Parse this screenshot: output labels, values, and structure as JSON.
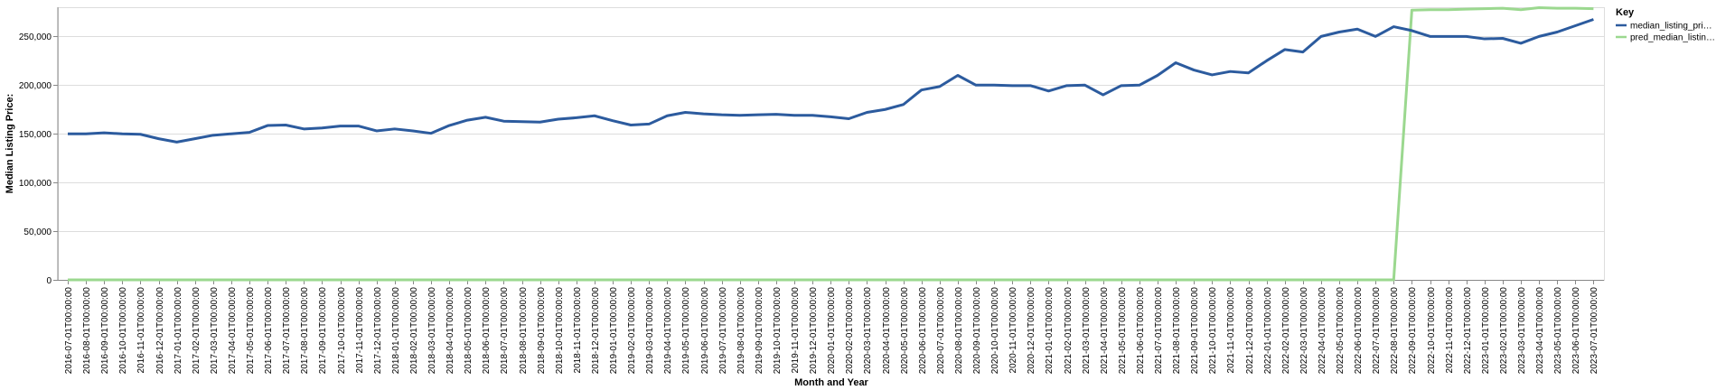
{
  "chart_data": {
    "type": "line",
    "xlabel": "Month and Year",
    "ylabel": "Median Listing Price:",
    "ylim": [
      0,
      280000
    ],
    "y_ticks": [
      0,
      50000,
      100000,
      150000,
      200000,
      250000
    ],
    "grid": true,
    "legend": {
      "title": "Key",
      "placement": "top-right"
    },
    "x": [
      "2016-07-01T00:00:00",
      "2016-08-01T00:00:00",
      "2016-09-01T00:00:00",
      "2016-10-01T00:00:00",
      "2016-11-01T00:00:00",
      "2016-12-01T00:00:00",
      "2017-01-01T00:00:00",
      "2017-02-01T00:00:00",
      "2017-03-01T00:00:00",
      "2017-04-01T00:00:00",
      "2017-05-01T00:00:00",
      "2017-06-01T00:00:00",
      "2017-07-01T00:00:00",
      "2017-08-01T00:00:00",
      "2017-09-01T00:00:00",
      "2017-10-01T00:00:00",
      "2017-11-01T00:00:00",
      "2017-12-01T00:00:00",
      "2018-01-01T00:00:00",
      "2018-02-01T00:00:00",
      "2018-03-01T00:00:00",
      "2018-04-01T00:00:00",
      "2018-05-01T00:00:00",
      "2018-06-01T00:00:00",
      "2018-07-01T00:00:00",
      "2018-08-01T00:00:00",
      "2018-09-01T00:00:00",
      "2018-10-01T00:00:00",
      "2018-11-01T00:00:00",
      "2018-12-01T00:00:00",
      "2019-01-01T00:00:00",
      "2019-02-01T00:00:00",
      "2019-03-01T00:00:00",
      "2019-04-01T00:00:00",
      "2019-05-01T00:00:00",
      "2019-06-01T00:00:00",
      "2019-07-01T00:00:00",
      "2019-08-01T00:00:00",
      "2019-09-01T00:00:00",
      "2019-10-01T00:00:00",
      "2019-11-01T00:00:00",
      "2019-12-01T00:00:00",
      "2020-01-01T00:00:00",
      "2020-02-01T00:00:00",
      "2020-03-01T00:00:00",
      "2020-04-01T00:00:00",
      "2020-05-01T00:00:00",
      "2020-06-01T00:00:00",
      "2020-07-01T00:00:00",
      "2020-08-01T00:00:00",
      "2020-09-01T00:00:00",
      "2020-10-01T00:00:00",
      "2020-11-01T00:00:00",
      "2020-12-01T00:00:00",
      "2021-01-01T00:00:00",
      "2021-02-01T00:00:00",
      "2021-03-01T00:00:00",
      "2021-04-01T00:00:00",
      "2021-05-01T00:00:00",
      "2021-06-01T00:00:00",
      "2021-07-01T00:00:00",
      "2021-08-01T00:00:00",
      "2021-09-01T00:00:00",
      "2021-10-01T00:00:00",
      "2021-11-01T00:00:00",
      "2021-12-01T00:00:00",
      "2022-01-01T00:00:00",
      "2022-02-01T00:00:00",
      "2022-03-01T00:00:00",
      "2022-04-01T00:00:00",
      "2022-05-01T00:00:00",
      "2022-06-01T00:00:00",
      "2022-07-01T00:00:00",
      "2022-08-01T00:00:00",
      "2022-09-01T00:00:00",
      "2022-10-01T00:00:00",
      "2022-11-01T00:00:00",
      "2022-12-01T00:00:00",
      "2023-01-01T00:00:00",
      "2023-02-01T00:00:00",
      "2023-03-01T00:00:00",
      "2023-04-01T00:00:00",
      "2023-05-01T00:00:00",
      "2023-06-01T00:00:00",
      "2023-07-01T00:00:00"
    ],
    "series": [
      {
        "name": "median_listing_pri…",
        "color": "#2c5b9e",
        "values": [
          150000,
          150000,
          151000,
          150000,
          149500,
          145000,
          141500,
          145000,
          148500,
          150000,
          151500,
          158500,
          159000,
          155000,
          156000,
          158000,
          158000,
          153000,
          155000,
          153000,
          150500,
          158500,
          164000,
          167000,
          163000,
          162500,
          162000,
          165000,
          166500,
          168500,
          163500,
          159000,
          160000,
          168500,
          172000,
          170500,
          169500,
          169000,
          169500,
          170000,
          169000,
          169000,
          167500,
          165500,
          172000,
          175000,
          180000,
          195000,
          198500,
          210000,
          200000,
          200000,
          199500,
          199500,
          194000,
          199500,
          200000,
          190000,
          199500,
          200000,
          210000,
          223000,
          215500,
          210500,
          214000,
          212500,
          225000,
          236500,
          234000,
          250000,
          254500,
          257500,
          250000,
          260000,
          256000,
          250000,
          250000,
          250000,
          247500,
          248000,
          243000,
          250000,
          254500,
          261000,
          267500
        ]
      },
      {
        "name": "pred_median_listin…",
        "color": "#9bd88f",
        "values": [
          0,
          0,
          0,
          0,
          0,
          0,
          0,
          0,
          0,
          0,
          0,
          0,
          0,
          0,
          0,
          0,
          0,
          0,
          0,
          0,
          0,
          0,
          0,
          0,
          0,
          0,
          0,
          0,
          0,
          0,
          0,
          0,
          0,
          0,
          0,
          0,
          0,
          0,
          0,
          0,
          0,
          0,
          0,
          0,
          0,
          0,
          0,
          0,
          0,
          0,
          0,
          0,
          0,
          0,
          0,
          0,
          0,
          0,
          0,
          0,
          0,
          0,
          0,
          0,
          0,
          0,
          0,
          0,
          0,
          0,
          0,
          0,
          0,
          0,
          277000,
          277500,
          277500,
          278000,
          278500,
          279000,
          277500,
          279500,
          279000,
          279000,
          278500
        ]
      }
    ]
  }
}
